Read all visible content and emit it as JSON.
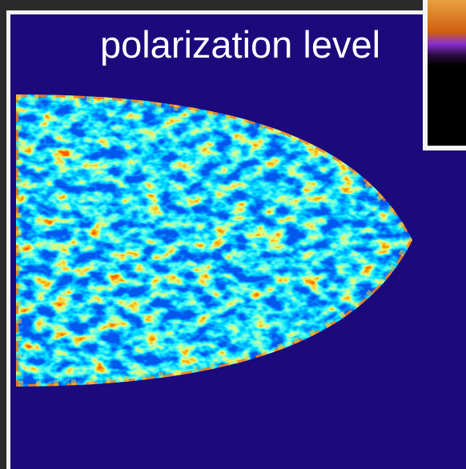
{
  "title": "polarization level"
}
